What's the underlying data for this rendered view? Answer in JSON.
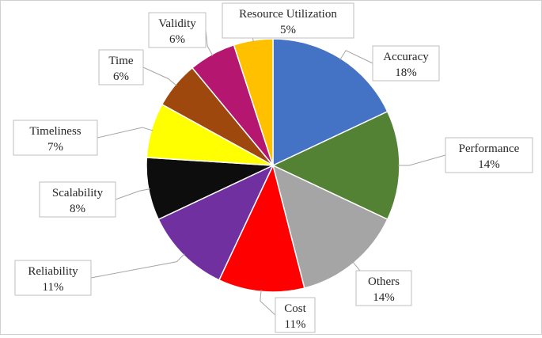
{
  "chart_data": {
    "type": "pie",
    "title": "",
    "slices": [
      {
        "label": "Accuracy",
        "value": 18,
        "value_text": "18%",
        "color": "#4472C4"
      },
      {
        "label": "Performance",
        "value": 14,
        "value_text": "14%",
        "color": "#548235"
      },
      {
        "label": "Others",
        "value": 14,
        "value_text": "14%",
        "color": "#A5A5A5"
      },
      {
        "label": "Cost",
        "value": 11,
        "value_text": "11%",
        "color": "#FF0000"
      },
      {
        "label": "Reliability",
        "value": 11,
        "value_text": "11%",
        "color": "#7030A0"
      },
      {
        "label": "Scalability",
        "value": 8,
        "value_text": "8%",
        "color": "#0D0D0D"
      },
      {
        "label": "Timeliness",
        "value": 7,
        "value_text": "7%",
        "color": "#FFFF00"
      },
      {
        "label": "Time",
        "value": 6,
        "value_text": "6%",
        "color": "#9E480E"
      },
      {
        "label": "Validity",
        "value": 6,
        "value_text": "6%",
        "color": "#B5166F"
      },
      {
        "label": "Resource Utilization",
        "value": 5,
        "value_text": "5%",
        "color": "#FFC000"
      }
    ],
    "legend": "none",
    "data_labels": "outside with leader lines"
  }
}
